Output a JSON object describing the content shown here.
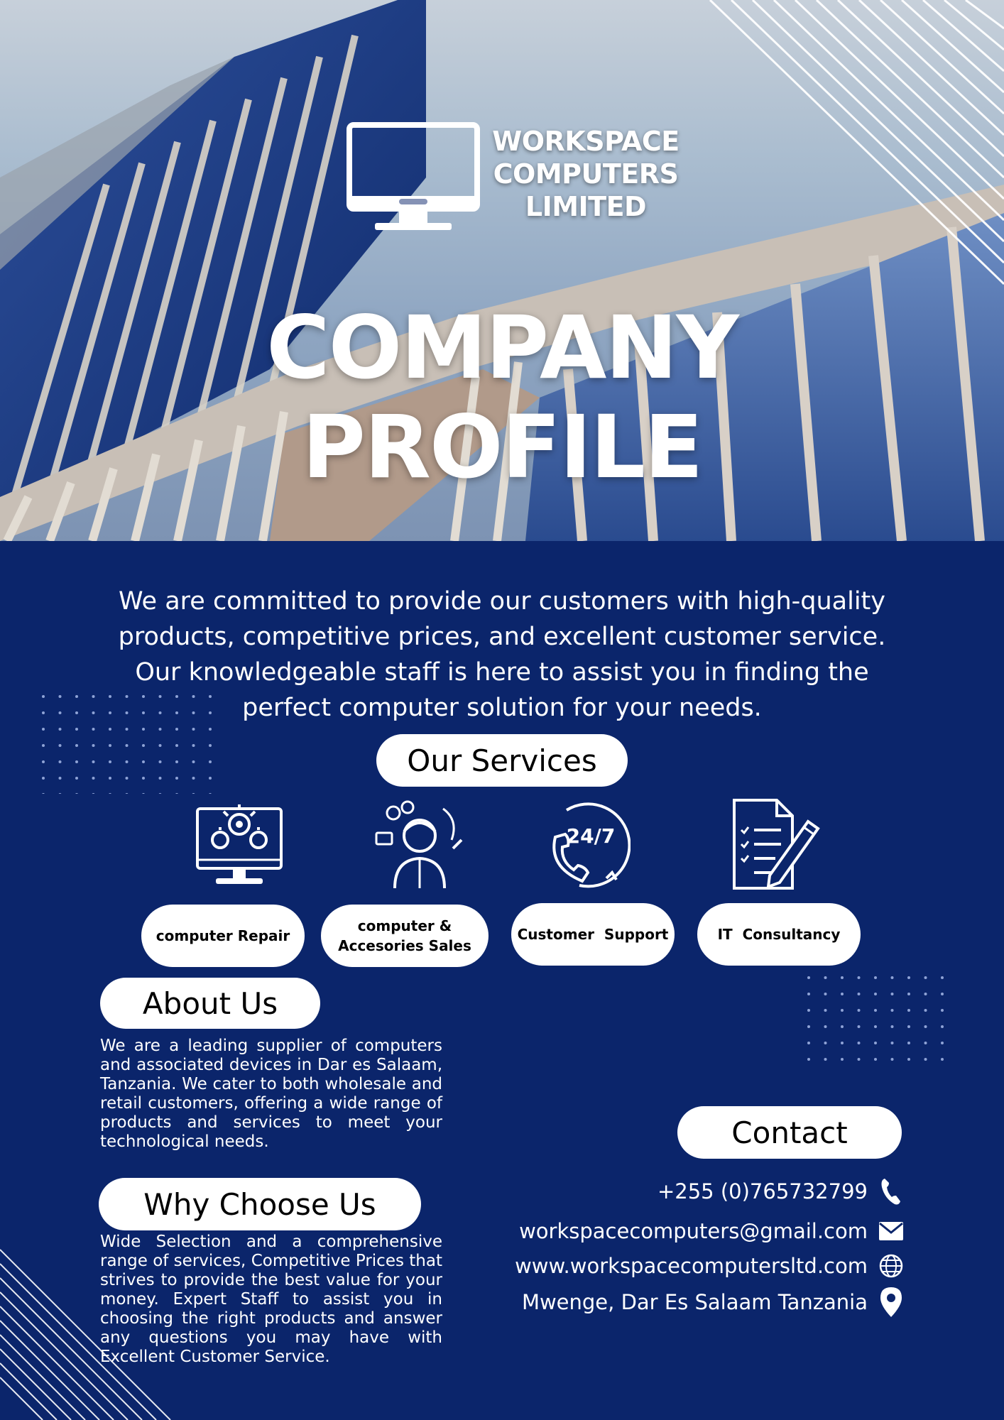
{
  "hero": {
    "logo_line1": "WORKSPACE",
    "logo_line2": "COMPUTERS",
    "logo_line3": "LIMITED",
    "title_line1": "COMPANY",
    "title_line2": "PROFILE"
  },
  "intro": {
    "line1": "We are committed to provide our customers with high-quality",
    "line2": "products, competitive prices, and excellent customer service.",
    "line3": "Our knowledgeable staff is here to assist you in finding the",
    "line4": "perfect computer solution for your needs."
  },
  "services": {
    "heading": "Our Services",
    "items": [
      {
        "label_line1": "computer Repair",
        "label_line2": "",
        "icon": "monitor-gears-icon"
      },
      {
        "label_line1": "computer &",
        "label_line2": "Accesories Sales",
        "icon": "sales-person-icon"
      },
      {
        "label_line1": "Customer  Support",
        "label_line2": "",
        "icon": "phone-24-7-icon"
      },
      {
        "label_line1": "IT  Consultancy",
        "label_line2": "",
        "icon": "document-pen-icon"
      }
    ]
  },
  "about": {
    "heading": "About Us",
    "text": "We are a leading supplier of computers and associated devices in Dar es Salaam, Tanzania. We cater to both wholesale and retail customers, offering a wide range of products and services to meet your technological needs."
  },
  "why": {
    "heading": "Why Choose Us",
    "text": "Wide Selection and a comprehensive range of services, Competitive Prices that strives to provide the best value for your money. Expert Staff to assist you in choosing the right products and answer any questions you may have with Excellent Customer Service."
  },
  "contact": {
    "heading": "Contact",
    "phone": "+255 (0)765732799",
    "email": "workspacecomputers@gmail.com",
    "website": "www.workspacecomputersltd.com",
    "address": "Mwenge, Dar Es Salaam Tanzania"
  },
  "colors": {
    "navy_background": "#0b256b",
    "pill_white": "#ffffff"
  }
}
